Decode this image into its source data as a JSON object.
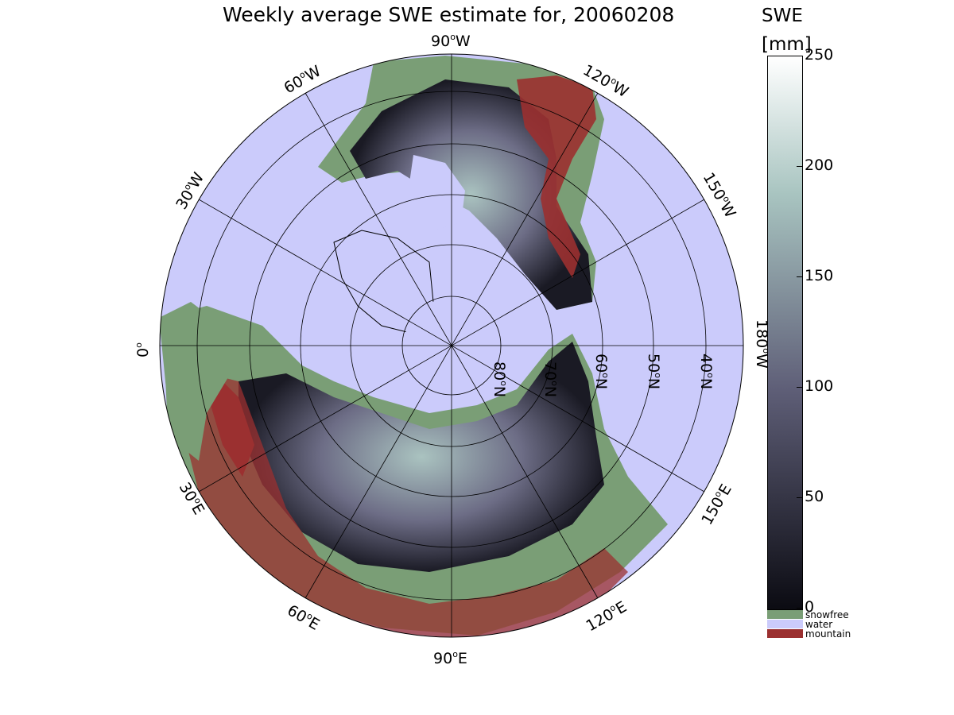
{
  "title": "Weekly average SWE estimate for, 20060208",
  "colorbar": {
    "title_line1": "SWE",
    "title_line2": "[mm]",
    "ticks": [
      "250",
      "200",
      "150",
      "100",
      "50",
      "0"
    ],
    "range": [
      0,
      250
    ]
  },
  "legend": [
    {
      "label": "snowfree",
      "color": "#7a9e76"
    },
    {
      "label": "water",
      "color": "#cbcbfb"
    },
    {
      "label": "mountain",
      "color": "#9b3030"
    }
  ],
  "longitude_labels": {
    "lon_90w": {
      "deg": "90",
      "sup": "o",
      "dir": "W"
    },
    "lon_60w": {
      "deg": "60",
      "sup": "o",
      "dir": "W"
    },
    "lon_120w": {
      "deg": "120",
      "sup": "o",
      "dir": "W"
    },
    "lon_30w": {
      "deg": "30",
      "sup": "o",
      "dir": "W"
    },
    "lon_150w": {
      "deg": "150",
      "sup": "o",
      "dir": "W"
    },
    "lon_0": {
      "deg": "0",
      "sup": "o",
      "dir": ""
    },
    "lon_180w": {
      "deg": "180",
      "sup": "o",
      "dir": "W"
    },
    "lon_30e": {
      "deg": "30",
      "sup": "o",
      "dir": "E"
    },
    "lon_150e": {
      "deg": "150",
      "sup": "o",
      "dir": "E"
    },
    "lon_60e": {
      "deg": "60",
      "sup": "o",
      "dir": "E"
    },
    "lon_120e": {
      "deg": "120",
      "sup": "o",
      "dir": "E"
    },
    "lon_90e": {
      "deg": "90",
      "sup": "o",
      "dir": "E"
    }
  },
  "latitude_labels": {
    "lat_80n": {
      "deg": "80",
      "sup": "o",
      "dir": "N"
    },
    "lat_70n": {
      "deg": "70",
      "sup": "o",
      "dir": "N"
    },
    "lat_60n": {
      "deg": "60",
      "sup": "o",
      "dir": "N"
    },
    "lat_50n": {
      "deg": "50",
      "sup": "o",
      "dir": "N"
    },
    "lat_40n": {
      "deg": "40",
      "sup": "o",
      "dir": "N"
    }
  },
  "colors": {
    "water": "#cbcbfb",
    "snowfree": "#7a9e76",
    "mountain": "#9b3030",
    "swe_low": "#0b0b12",
    "swe_mid": "#5f5f78",
    "swe_high": "#a8c4c0",
    "swe_max": "#ffffff"
  }
}
